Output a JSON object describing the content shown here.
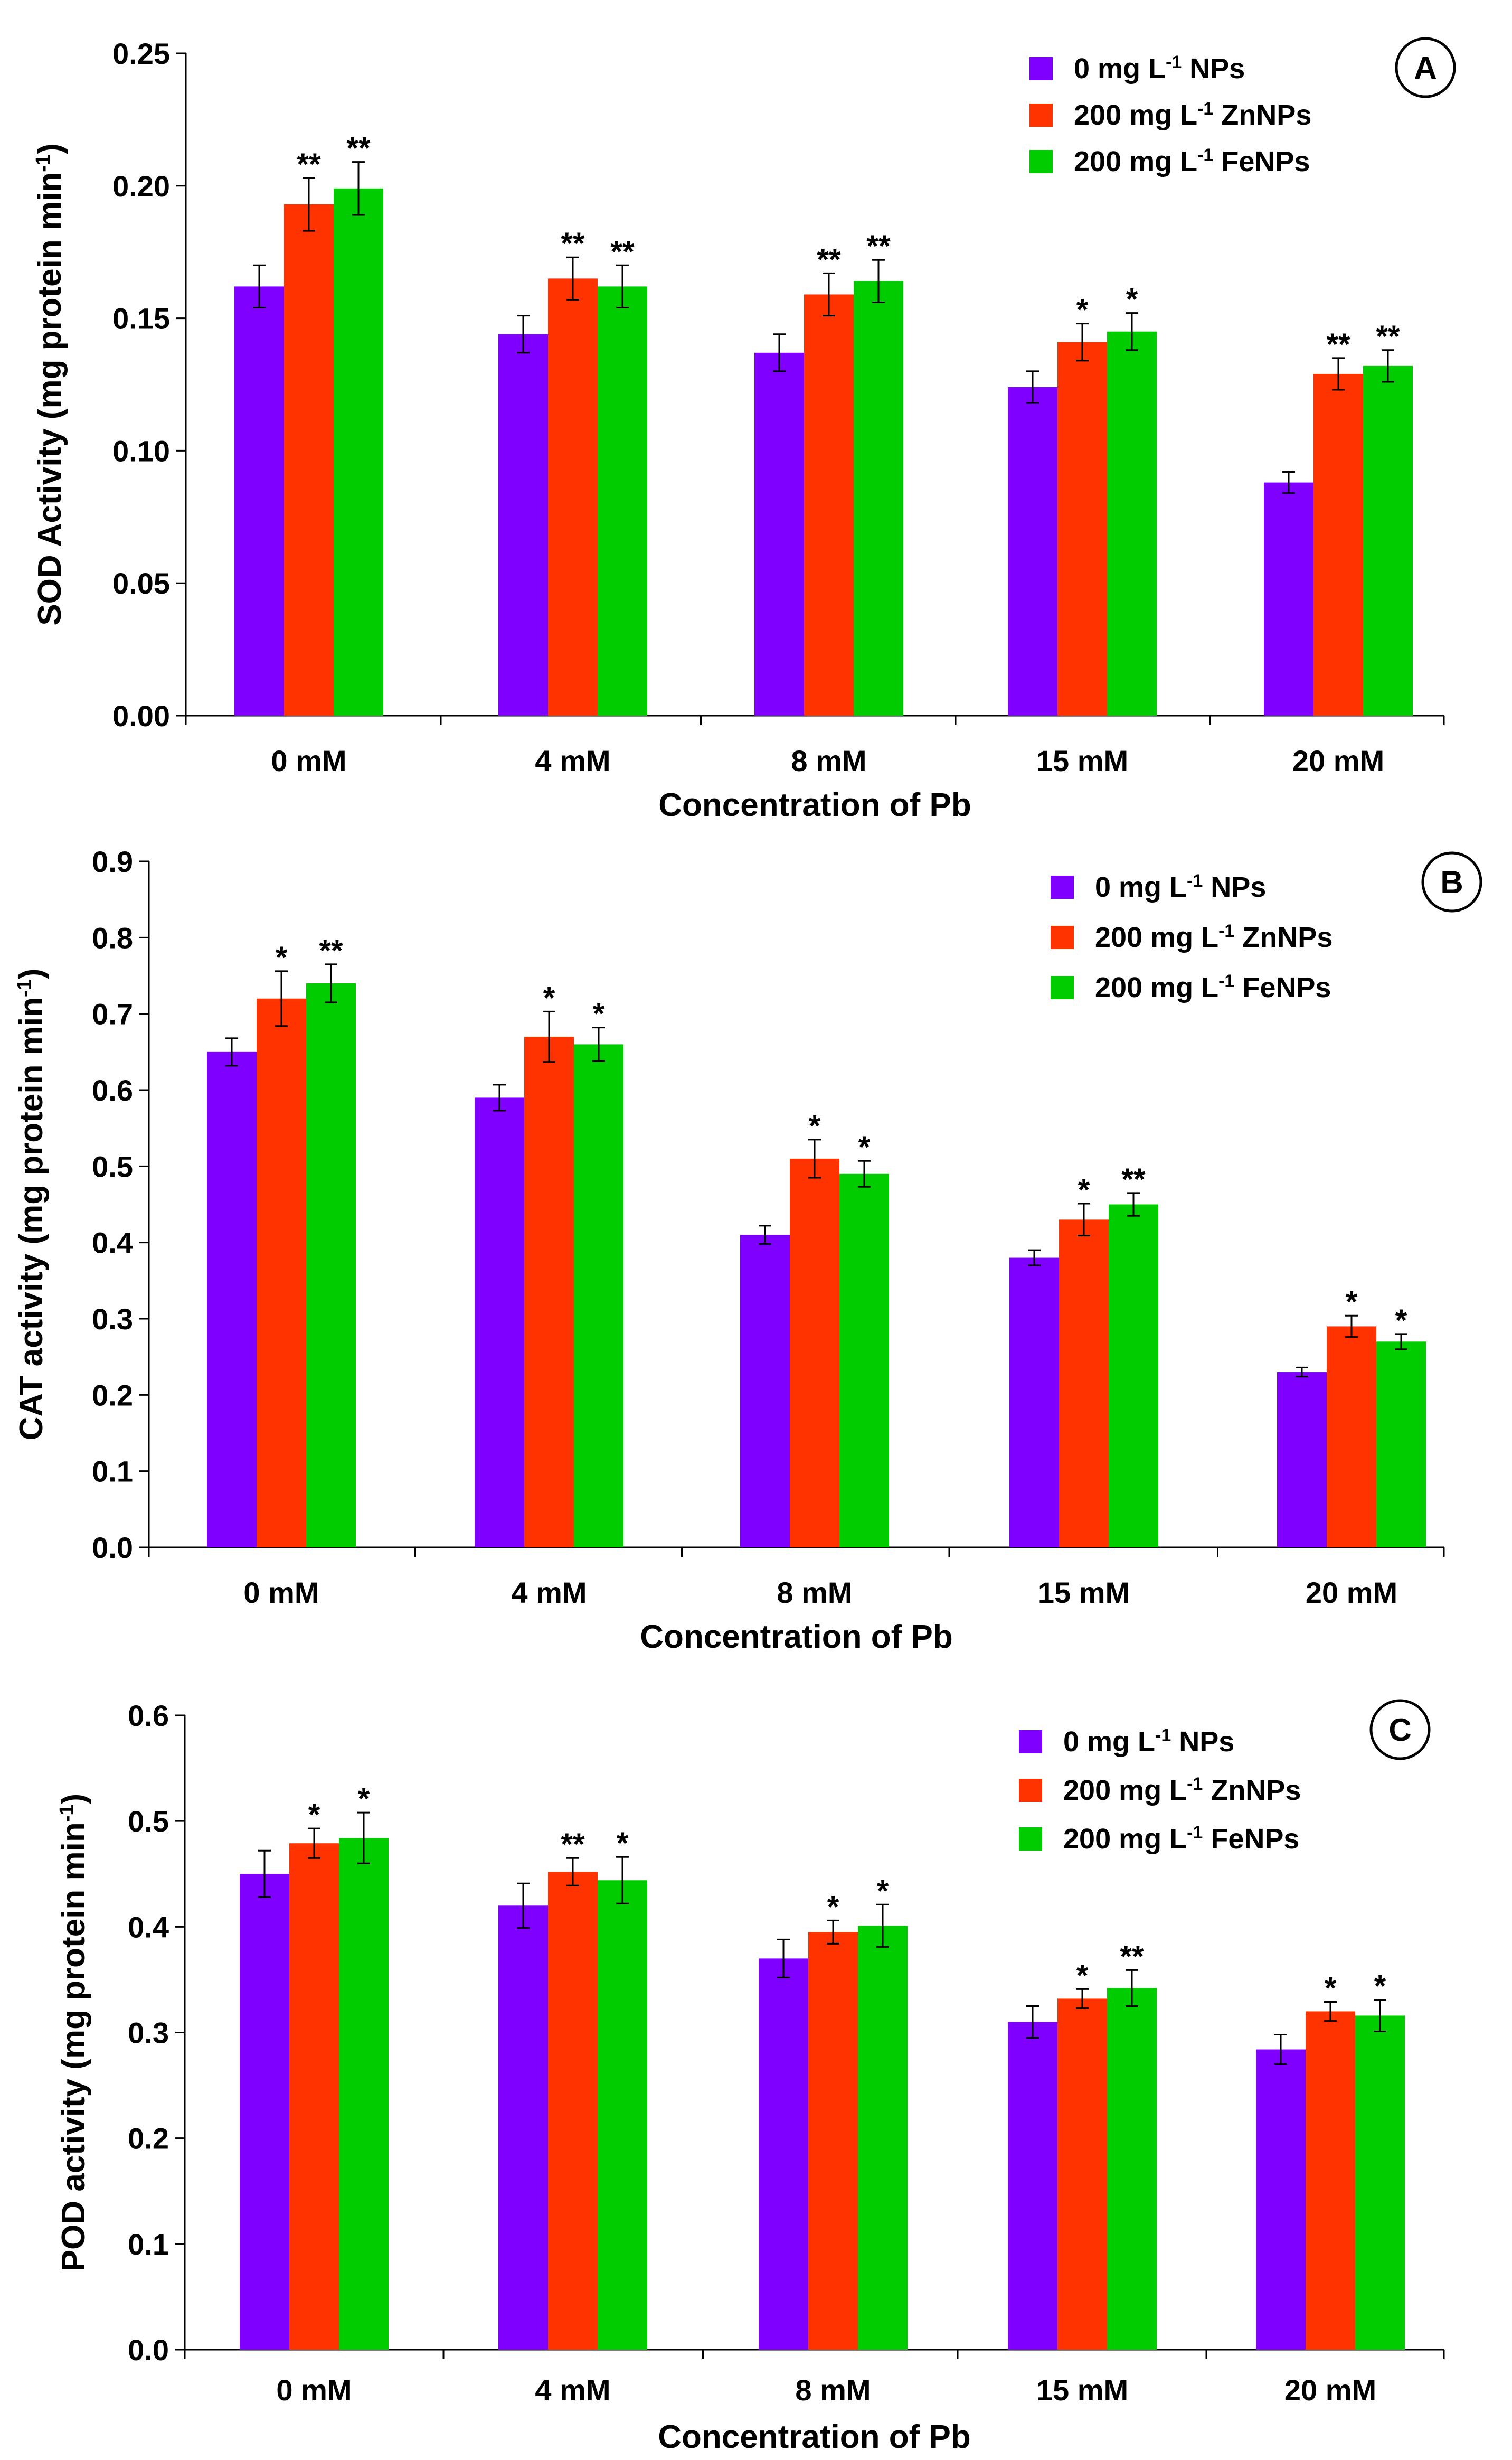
{
  "figure": {
    "series_colors": [
      "#7f00ff",
      "#ff3300",
      "#00cc00"
    ]
  },
  "chart_data": [
    {
      "type": "bar",
      "panel": "A",
      "title": "",
      "xlabel": "Concentration of Pb",
      "ylabel": "SOD Activity (mg protein min",
      "ylabel_sup": "-1",
      "ylabel_end": ")",
      "categories": [
        "0 mM",
        "4 mM",
        "8 mM",
        "15 mM",
        "20 mM"
      ],
      "ylim": [
        0,
        0.25
      ],
      "yticks": [
        0,
        0.05,
        0.1,
        0.15,
        0.2,
        0.25
      ],
      "ytick_labels": [
        "0.00",
        "0.05",
        "0.10",
        "0.15",
        "0.20",
        "0.25"
      ],
      "legend_position": "top-right",
      "series": [
        {
          "name": "0 mg L-1 NPs",
          "legend": {
            "pre": "0 mg L",
            "sup": "-1",
            "post": " NPs"
          },
          "color": "#7f00ff",
          "values": [
            0.162,
            0.144,
            0.137,
            0.124,
            0.088
          ],
          "errors": [
            0.008,
            0.007,
            0.007,
            0.006,
            0.004
          ],
          "significance": [
            "",
            "",
            "",
            "",
            ""
          ]
        },
        {
          "name": "200 mg L-1 ZnNPs",
          "legend": {
            "pre": "200 mg L",
            "sup": "-1",
            "post": " ZnNPs"
          },
          "color": "#ff3300",
          "values": [
            0.193,
            0.165,
            0.159,
            0.141,
            0.129
          ],
          "errors": [
            0.01,
            0.008,
            0.008,
            0.007,
            0.006
          ],
          "significance": [
            "**",
            "**",
            "**",
            "*",
            "**"
          ]
        },
        {
          "name": "200 mg L-1 FeNPs",
          "legend": {
            "pre": "200 mg L",
            "sup": "-1",
            "post": " FeNPs"
          },
          "color": "#00cc00",
          "values": [
            0.199,
            0.162,
            0.164,
            0.145,
            0.132
          ],
          "errors": [
            0.01,
            0.008,
            0.008,
            0.007,
            0.006
          ],
          "significance": [
            "**",
            "**",
            "**",
            "*",
            "**"
          ]
        }
      ]
    },
    {
      "type": "bar",
      "panel": "B",
      "title": "",
      "xlabel": "Concentration of Pb",
      "ylabel": "CAT activity (mg protein min",
      "ylabel_sup": "-1",
      "ylabel_end": ")",
      "categories": [
        "0 mM",
        "4 mM",
        "8 mM",
        "15 mM",
        "20 mM"
      ],
      "ylim": [
        0,
        0.9
      ],
      "yticks": [
        0,
        0.1,
        0.2,
        0.3,
        0.4,
        0.5,
        0.6,
        0.7,
        0.8,
        0.9
      ],
      "ytick_labels": [
        "0.0",
        "0.1",
        "0.2",
        "0.3",
        "0.4",
        "0.5",
        "0.6",
        "0.7",
        "0.8",
        "0.9"
      ],
      "legend_position": "top-right",
      "series": [
        {
          "name": "0 mg L-1 NPs",
          "legend": {
            "pre": "0 mg L",
            "sup": "-1",
            "post": " NPs"
          },
          "color": "#7f00ff",
          "values": [
            0.65,
            0.59,
            0.41,
            0.38,
            0.23
          ],
          "errors": [
            0.018,
            0.017,
            0.012,
            0.01,
            0.006
          ],
          "significance": [
            "",
            "",
            "",
            "",
            ""
          ]
        },
        {
          "name": "200 mg L-1 ZnNPs",
          "legend": {
            "pre": "200 mg L",
            "sup": "-1",
            "post": " ZnNPs"
          },
          "color": "#ff3300",
          "values": [
            0.72,
            0.67,
            0.51,
            0.43,
            0.29
          ],
          "errors": [
            0.036,
            0.033,
            0.025,
            0.021,
            0.014
          ],
          "significance": [
            "*",
            "*",
            "*",
            "*",
            "*"
          ]
        },
        {
          "name": "200 mg L-1 FeNPs",
          "legend": {
            "pre": "200 mg L",
            "sup": "-1",
            "post": " FeNPs"
          },
          "color": "#00cc00",
          "values": [
            0.74,
            0.66,
            0.49,
            0.45,
            0.27
          ],
          "errors": [
            0.025,
            0.022,
            0.017,
            0.015,
            0.01
          ],
          "significance": [
            "**",
            "*",
            "*",
            "**",
            "*"
          ]
        }
      ]
    },
    {
      "type": "bar",
      "panel": "C",
      "title": "",
      "xlabel": "Concentration of Pb",
      "ylabel": "POD activity (mg protein min",
      "ylabel_sup": "-1",
      "ylabel_end": ")",
      "categories": [
        "0 mM",
        "4 mM",
        "8 mM",
        "15 mM",
        "20 mM"
      ],
      "ylim": [
        0,
        0.6
      ],
      "yticks": [
        0,
        0.1,
        0.2,
        0.3,
        0.4,
        0.5,
        0.6
      ],
      "ytick_labels": [
        "0.0",
        "0.1",
        "0.2",
        "0.3",
        "0.4",
        "0.5",
        "0.6"
      ],
      "legend_position": "top-right",
      "series": [
        {
          "name": "0 mg L-1 NPs",
          "legend": {
            "pre": "0 mg L",
            "sup": "-1",
            "post": " NPs"
          },
          "color": "#7f00ff",
          "values": [
            0.45,
            0.42,
            0.37,
            0.31,
            0.284
          ],
          "errors": [
            0.022,
            0.021,
            0.018,
            0.015,
            0.014
          ],
          "significance": [
            "",
            "",
            "",
            "",
            ""
          ]
        },
        {
          "name": "200 mg L-1 ZnNPs",
          "legend": {
            "pre": "200 mg L",
            "sup": "-1",
            "post": " ZnNPs"
          },
          "color": "#ff3300",
          "values": [
            0.479,
            0.452,
            0.395,
            0.332,
            0.32
          ],
          "errors": [
            0.014,
            0.013,
            0.011,
            0.009,
            0.009
          ],
          "significance": [
            "*",
            "**",
            "*",
            "*",
            "*"
          ]
        },
        {
          "name": "200 mg L-1 FeNPs",
          "legend": {
            "pre": "200 mg L",
            "sup": "-1",
            "post": " FeNPs"
          },
          "color": "#00cc00",
          "values": [
            0.484,
            0.444,
            0.401,
            0.342,
            0.316
          ],
          "errors": [
            0.024,
            0.022,
            0.02,
            0.017,
            0.015
          ],
          "significance": [
            "*",
            "*",
            "*",
            "**",
            "*"
          ]
        }
      ]
    }
  ]
}
